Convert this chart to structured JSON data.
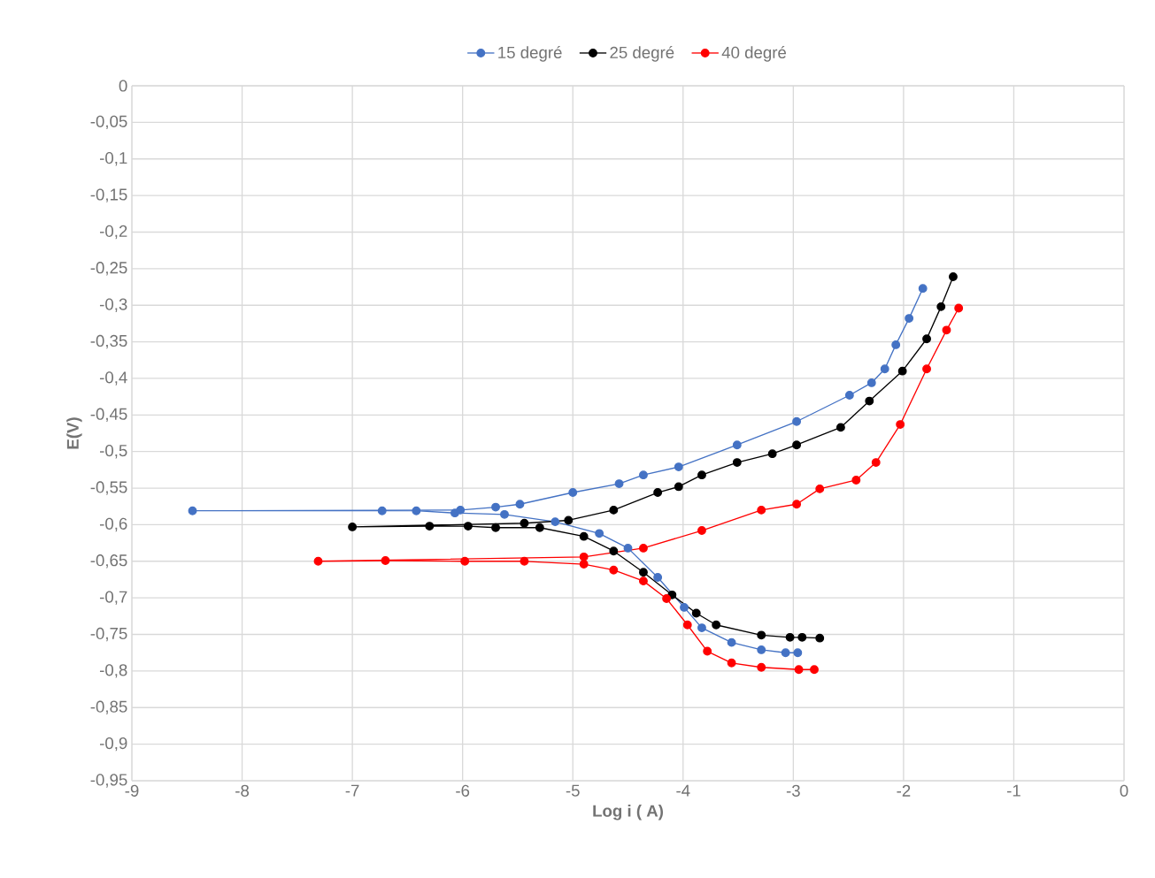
{
  "chart_data": {
    "type": "line",
    "xlabel": "Log i ( A)",
    "ylabel": "E(V)",
    "xlim": [
      -9,
      0
    ],
    "ylim": [
      -0.95,
      0
    ],
    "xticks": [
      -9,
      -8,
      -7,
      -6,
      -5,
      -4,
      -3,
      -2,
      -1,
      0
    ],
    "yticks": [
      0,
      {
        "value": -0.05,
        "label": "-0,05"
      },
      {
        "value": -0.1,
        "label": "-0,1"
      },
      {
        "value": -0.15,
        "label": "-0,15"
      },
      {
        "value": -0.2,
        "label": "-0,2"
      },
      {
        "value": -0.25,
        "label": "-0,25"
      },
      {
        "value": -0.3,
        "label": "-0,3"
      },
      {
        "value": -0.35,
        "label": "-0,35"
      },
      {
        "value": -0.4,
        "label": "-0,4"
      },
      {
        "value": -0.45,
        "label": "-0,45"
      },
      {
        "value": -0.5,
        "label": "-0,5"
      },
      {
        "value": -0.55,
        "label": "-0,55"
      },
      {
        "value": -0.6,
        "label": "-0,6"
      },
      {
        "value": -0.65,
        "label": "-0,65"
      },
      {
        "value": -0.7,
        "label": "-0,7"
      },
      {
        "value": -0.75,
        "label": "-0,75"
      },
      {
        "value": -0.8,
        "label": "-0,8"
      },
      {
        "value": -0.85,
        "label": "-0,85"
      },
      {
        "value": -0.9,
        "label": "-0,9"
      },
      {
        "value": -0.95,
        "label": "-0,95"
      }
    ],
    "grid": true,
    "legend": "top",
    "marker": "circle",
    "line_style": "solid",
    "series": [
      {
        "name": "15 degré",
        "color": "#4472c4",
        "x": [
          -2.96,
          -3.07,
          -3.29,
          -3.56,
          -3.83,
          -3.99,
          -4.23,
          -4.5,
          -4.76,
          -5.16,
          -5.62,
          -6.07,
          -6.42,
          -6.73,
          -8.45,
          -6.02,
          -5.7,
          -5.48,
          -5.0,
          -4.58,
          -4.36,
          -4.04,
          -3.51,
          -2.97,
          -2.49,
          -2.29,
          -2.17,
          -2.07,
          -1.95,
          -1.825
        ],
        "values": [
          -0.775,
          -0.775,
          -0.771,
          -0.761,
          -0.741,
          -0.713,
          -0.672,
          -0.632,
          -0.612,
          -0.596,
          -0.586,
          -0.584,
          -0.581,
          -0.581,
          -0.581,
          -0.58,
          -0.576,
          -0.572,
          -0.556,
          -0.544,
          -0.532,
          -0.521,
          -0.491,
          -0.459,
          -0.423,
          -0.406,
          -0.387,
          -0.354,
          -0.318,
          -0.277
        ]
      },
      {
        "name": "25 degré",
        "color": "#000000",
        "x": [
          -2.76,
          -2.92,
          -3.03,
          -3.29,
          -3.7,
          -3.88,
          -4.1,
          -4.36,
          -4.63,
          -4.9,
          -5.3,
          -5.7,
          -5.95,
          -6.3,
          -7.0,
          -5.44,
          -5.04,
          -4.63,
          -4.23,
          -4.04,
          -3.83,
          -3.51,
          -3.19,
          -2.97,
          -2.57,
          -2.31,
          -2.01,
          -1.79,
          -1.66,
          -1.55
        ],
        "values": [
          -0.755,
          -0.754,
          -0.754,
          -0.751,
          -0.737,
          -0.721,
          -0.696,
          -0.665,
          -0.636,
          -0.616,
          -0.604,
          -0.604,
          -0.602,
          -0.602,
          -0.603,
          -0.598,
          -0.594,
          -0.58,
          -0.556,
          -0.548,
          -0.532,
          -0.515,
          -0.503,
          -0.491,
          -0.467,
          -0.431,
          -0.39,
          -0.346,
          -0.302,
          -0.261
        ]
      },
      {
        "name": "40 degré",
        "color": "#ff0000",
        "x": [
          -2.81,
          -2.95,
          -3.29,
          -3.56,
          -3.78,
          -3.96,
          -4.15,
          -4.36,
          -4.63,
          -4.9,
          -5.44,
          -5.98,
          -6.7,
          -7.31,
          -4.9,
          -4.36,
          -3.83,
          -3.29,
          -2.97,
          -2.76,
          -2.43,
          -2.25,
          -2.03,
          -1.79,
          -1.61,
          -1.5
        ],
        "values": [
          -0.798,
          -0.798,
          -0.795,
          -0.789,
          -0.773,
          -0.737,
          -0.701,
          -0.677,
          -0.662,
          -0.654,
          -0.65,
          -0.65,
          -0.649,
          -0.65,
          -0.644,
          -0.632,
          -0.608,
          -0.58,
          -0.572,
          -0.551,
          -0.539,
          -0.515,
          -0.463,
          -0.387,
          -0.334,
          -0.304
        ]
      }
    ]
  }
}
